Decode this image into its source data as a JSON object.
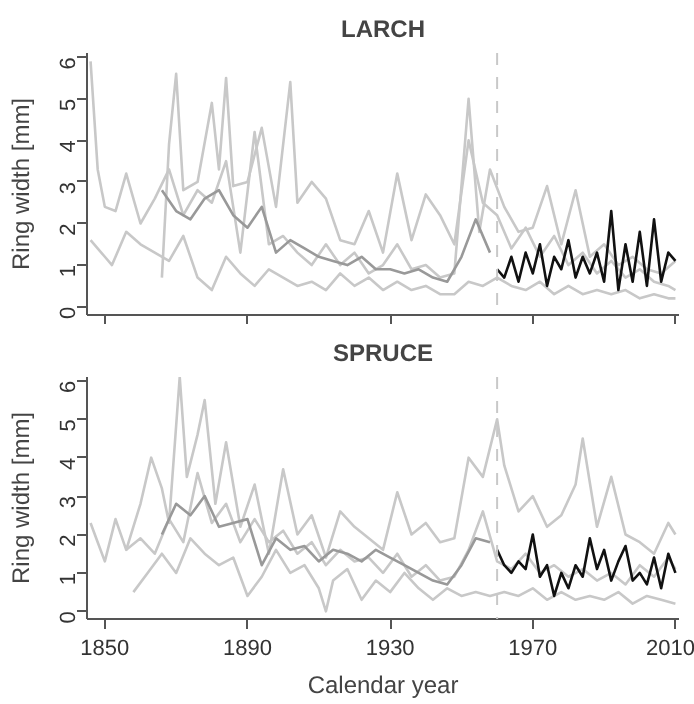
{
  "chart_data": [
    {
      "type": "line",
      "title": "LARCH",
      "ylabel": "Ring width [mm]",
      "xlim": [
        1845,
        2011
      ],
      "ylim": [
        -0.2,
        6.1
      ],
      "xticks": [
        1850,
        1890,
        1930,
        1970,
        2010
      ],
      "yticks": [
        0,
        1,
        2,
        3,
        4,
        5,
        6
      ],
      "tick_labels": "y",
      "grid": false,
      "line_style": "solid",
      "marker": "none",
      "ref_lines": [
        {
          "axis": "x",
          "value": 1960,
          "color": "#c8c8c8",
          "line_style": "dashed"
        }
      ],
      "series": [
        {
          "color": "#c8c8c8",
          "x": [
            1846,
            1848,
            1850,
            1853,
            1856,
            1860,
            1864,
            1868,
            1872,
            1876,
            1880,
            1884,
            1888,
            1892,
            1896,
            1900,
            1904,
            1908,
            1912,
            1916,
            1920,
            1924,
            1928,
            1932,
            1936,
            1940,
            1944,
            1948,
            1952,
            1955,
            1958,
            1962,
            1966,
            1970,
            1974,
            1978,
            1982,
            1986,
            1990,
            1994,
            1998,
            2002,
            2006,
            2010
          ],
          "values": [
            5.9,
            3.3,
            2.4,
            2.3,
            3.2,
            2.0,
            2.6,
            3.3,
            2.2,
            2.8,
            2.5,
            3.5,
            1.3,
            4.2,
            1.5,
            1.7,
            1.3,
            1.0,
            1.5,
            1.0,
            1.3,
            0.8,
            1.0,
            1.5,
            0.9,
            1.0,
            0.7,
            0.8,
            5.0,
            1.8,
            3.3,
            2.4,
            1.8,
            1.9,
            2.9,
            1.5,
            2.8,
            1.2,
            1.5,
            1.0,
            1.2,
            0.9,
            0.8,
            1.1
          ]
        },
        {
          "color": "#c8c8c8",
          "x": [
            1846,
            1850,
            1852,
            1856,
            1860,
            1864,
            1868,
            1872,
            1876,
            1880,
            1884,
            1888,
            1892,
            1896,
            1900,
            1904,
            1908,
            1912,
            1916,
            1920,
            1924,
            1928,
            1932,
            1936,
            1940,
            1944,
            1948,
            1952,
            1956,
            1960,
            1964,
            1968,
            1972,
            1976,
            1980,
            1984,
            1988,
            1992,
            1996,
            2000,
            2004,
            2008,
            2010
          ],
          "values": [
            1.6,
            1.2,
            1.0,
            1.8,
            1.5,
            1.3,
            1.1,
            1.7,
            0.7,
            0.4,
            1.2,
            0.8,
            0.5,
            0.9,
            0.7,
            0.5,
            0.6,
            0.4,
            0.8,
            0.5,
            0.7,
            0.4,
            0.6,
            0.4,
            0.5,
            0.3,
            0.3,
            0.6,
            0.5,
            0.7,
            0.5,
            0.4,
            0.6,
            0.3,
            0.5,
            0.3,
            0.4,
            0.3,
            0.4,
            0.2,
            0.3,
            0.2,
            0.2
          ]
        },
        {
          "color": "#c8c8c8",
          "x": [
            1866,
            1868,
            1870,
            1872,
            1876,
            1880,
            1882,
            1884,
            1886,
            1890,
            1894,
            1898,
            1902,
            1904,
            1908,
            1912,
            1916,
            1920,
            1924,
            1928,
            1932,
            1936,
            1940,
            1944,
            1948,
            1952,
            1956,
            1960,
            1964,
            1968,
            1972,
            1976,
            1980,
            1984,
            1988,
            1992,
            1996,
            2000,
            2004,
            2008,
            2010
          ],
          "values": [
            0.7,
            3.9,
            5.6,
            2.8,
            3.0,
            4.9,
            3.3,
            5.5,
            2.9,
            3.0,
            4.3,
            2.4,
            5.4,
            2.5,
            3.0,
            2.6,
            1.6,
            1.5,
            2.3,
            1.3,
            3.2,
            1.6,
            2.7,
            2.2,
            1.5,
            4.0,
            2.5,
            2.2,
            1.4,
            1.9,
            1.2,
            1.7,
            1.0,
            1.3,
            0.8,
            1.1,
            0.7,
            0.9,
            0.6,
            0.5,
            0.4
          ]
        },
        {
          "color": "#999999",
          "x": [
            1866,
            1870,
            1874,
            1878,
            1882,
            1886,
            1890,
            1894,
            1898,
            1902,
            1906,
            1910,
            1914,
            1918,
            1922,
            1926,
            1930,
            1934,
            1938,
            1942,
            1946,
            1950,
            1954,
            1958
          ],
          "values": [
            2.8,
            2.3,
            2.1,
            2.6,
            2.8,
            2.2,
            1.9,
            2.4,
            1.3,
            1.6,
            1.4,
            1.2,
            1.1,
            1.0,
            1.2,
            0.9,
            0.9,
            0.8,
            0.9,
            0.7,
            0.6,
            1.2,
            2.1,
            1.3
          ]
        },
        {
          "color": "#111111",
          "x": [
            1960,
            1962,
            1964,
            1966,
            1968,
            1970,
            1972,
            1974,
            1976,
            1978,
            1980,
            1982,
            1984,
            1986,
            1988,
            1990,
            1992,
            1994,
            1996,
            1998,
            2000,
            2002,
            2004,
            2006,
            2008,
            2010
          ],
          "values": [
            0.9,
            0.7,
            1.2,
            0.6,
            1.3,
            0.8,
            1.5,
            0.5,
            1.2,
            0.9,
            1.6,
            0.7,
            1.2,
            0.8,
            1.3,
            0.6,
            2.3,
            0.4,
            1.5,
            0.6,
            1.8,
            0.5,
            2.1,
            0.6,
            1.3,
            1.1
          ]
        }
      ]
    },
    {
      "type": "line",
      "title": "SPRUCE",
      "xlabel": "Calendar year",
      "ylabel": "Ring width [mm]",
      "xlim": [
        1845,
        2011
      ],
      "ylim": [
        -0.2,
        6.1
      ],
      "xticks": [
        1850,
        1890,
        1930,
        1970,
        2010
      ],
      "yticks": [
        0,
        1,
        2,
        3,
        4,
        5,
        6
      ],
      "grid": false,
      "line_style": "solid",
      "marker": "none",
      "ref_lines": [
        {
          "axis": "x",
          "value": 1960,
          "color": "#c8c8c8",
          "line_style": "dashed"
        }
      ],
      "series": [
        {
          "color": "#c8c8c8",
          "x": [
            1846,
            1848,
            1850,
            1853,
            1856,
            1860,
            1863,
            1866,
            1868,
            1871,
            1873,
            1876,
            1878,
            1881,
            1884,
            1888,
            1892,
            1896,
            1900,
            1904,
            1908,
            1912,
            1916,
            1920,
            1924,
            1928,
            1932,
            1936,
            1940,
            1944,
            1948,
            1952,
            1956,
            1960,
            1962,
            1966,
            1970,
            1974,
            1978,
            1982,
            1984,
            1988,
            1992,
            1996,
            2000,
            2004,
            2008,
            2010
          ],
          "values": [
            2.3,
            1.8,
            1.3,
            2.4,
            1.6,
            2.8,
            4.0,
            3.2,
            2.3,
            6.1,
            3.5,
            4.6,
            5.5,
            2.8,
            4.4,
            2.2,
            3.3,
            1.5,
            3.7,
            2.0,
            2.5,
            1.4,
            2.6,
            2.2,
            1.9,
            1.6,
            3.1,
            2.0,
            2.3,
            1.8,
            1.9,
            4.0,
            3.5,
            5.0,
            3.8,
            2.6,
            3.0,
            2.2,
            2.5,
            3.3,
            4.5,
            2.2,
            3.5,
            2.0,
            1.8,
            1.5,
            2.3,
            2.0
          ]
        },
        {
          "color": "#c8c8c8",
          "x": [
            1858,
            1862,
            1866,
            1870,
            1874,
            1878,
            1882,
            1886,
            1890,
            1894,
            1898,
            1902,
            1906,
            1910,
            1912,
            1914,
            1918,
            1922,
            1926,
            1930,
            1934,
            1938,
            1942,
            1946,
            1950,
            1954,
            1958,
            1962,
            1966,
            1970,
            1974,
            1978,
            1982,
            1986,
            1990,
            1994,
            1998,
            2002,
            2006,
            2010
          ],
          "values": [
            0.5,
            1.0,
            1.5,
            1.0,
            1.9,
            1.5,
            1.2,
            1.4,
            0.4,
            0.9,
            1.6,
            1.0,
            1.2,
            0.6,
            0.0,
            0.8,
            1.1,
            0.3,
            0.8,
            0.5,
            1.0,
            0.6,
            0.3,
            0.6,
            0.4,
            0.5,
            0.4,
            0.5,
            0.4,
            0.6,
            0.3,
            0.5,
            0.3,
            0.4,
            0.3,
            0.5,
            0.2,
            0.4,
            0.3,
            0.2
          ]
        },
        {
          "color": "#c8c8c8",
          "x": [
            1856,
            1860,
            1864,
            1868,
            1872,
            1876,
            1880,
            1884,
            1888,
            1892,
            1896,
            1900,
            1904,
            1908,
            1912,
            1916,
            1920,
            1924,
            1928,
            1932,
            1936,
            1940,
            1944,
            1948,
            1952,
            1956,
            1960,
            1964,
            1968,
            1972,
            1976,
            1980,
            1984,
            1988,
            1992,
            1996,
            2000,
            2004,
            2008,
            2010
          ],
          "values": [
            1.6,
            1.9,
            1.5,
            2.4,
            1.8,
            3.6,
            2.3,
            2.8,
            1.8,
            2.4,
            1.8,
            2.1,
            1.5,
            1.8,
            1.2,
            1.6,
            1.3,
            1.4,
            1.0,
            1.5,
            0.9,
            1.2,
            0.8,
            0.9,
            1.6,
            2.6,
            1.3,
            1.1,
            1.5,
            1.0,
            1.2,
            0.9,
            1.1,
            0.8,
            1.0,
            0.7,
            1.2,
            0.9,
            1.4,
            1.1
          ]
        },
        {
          "color": "#999999",
          "x": [
            1866,
            1870,
            1874,
            1878,
            1882,
            1886,
            1890,
            1894,
            1898,
            1902,
            1906,
            1910,
            1914,
            1918,
            1922,
            1926,
            1930,
            1934,
            1938,
            1942,
            1946,
            1950,
            1954,
            1958
          ],
          "values": [
            2.0,
            2.8,
            2.5,
            3.0,
            2.2,
            2.3,
            2.4,
            1.2,
            1.9,
            1.6,
            1.7,
            1.3,
            1.6,
            1.5,
            1.3,
            1.6,
            1.4,
            1.2,
            1.0,
            0.8,
            0.7,
            1.2,
            1.9,
            1.8
          ]
        },
        {
          "color": "#111111",
          "x": [
            1960,
            1962,
            1964,
            1966,
            1968,
            1970,
            1972,
            1974,
            1976,
            1978,
            1980,
            1982,
            1984,
            1986,
            1988,
            1990,
            1992,
            1994,
            1996,
            1998,
            2000,
            2002,
            2004,
            2006,
            2008,
            2010
          ],
          "values": [
            1.6,
            1.2,
            1.0,
            1.3,
            1.1,
            2.0,
            0.9,
            1.2,
            0.4,
            1.0,
            0.6,
            1.2,
            0.9,
            1.9,
            1.1,
            1.6,
            0.8,
            1.3,
            1.7,
            0.8,
            1.0,
            0.7,
            1.4,
            0.6,
            1.5,
            1.0
          ]
        }
      ]
    }
  ]
}
